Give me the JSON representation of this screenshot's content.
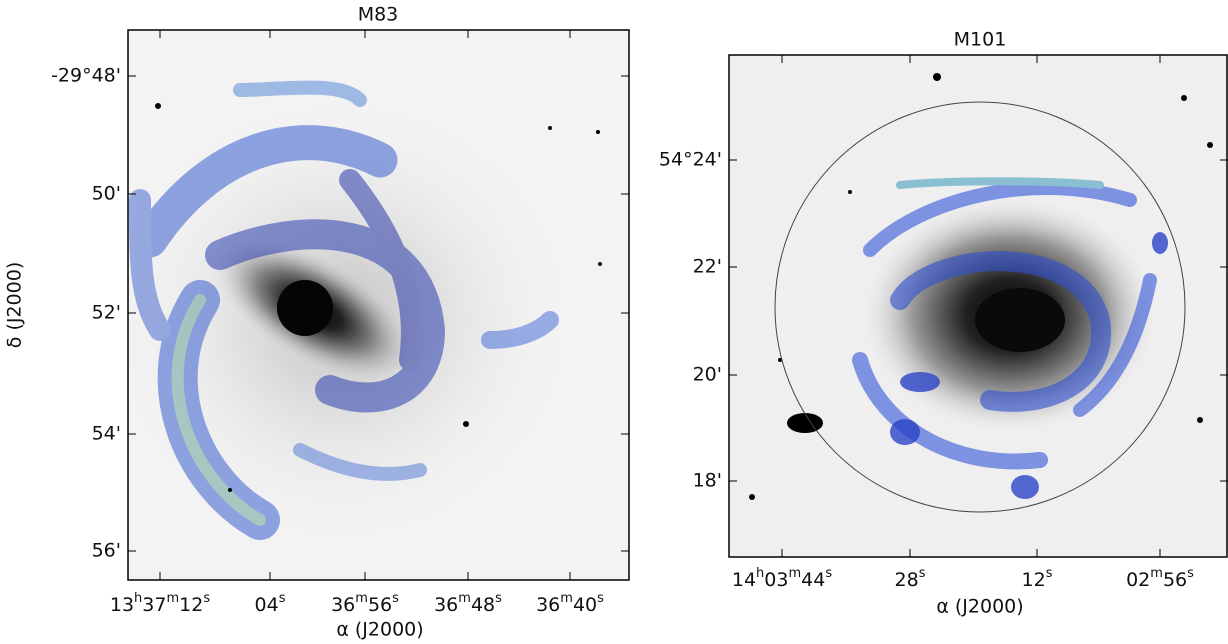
{
  "panels": [
    {
      "title": "M83",
      "y_tick_labels": [
        "-29°48'",
        "50'",
        "52'",
        "54'",
        "56'"
      ],
      "x_tick_labels": [
        [
          "13",
          "h",
          "37",
          "m",
          "12",
          "s"
        ],
        [
          "04",
          "s"
        ],
        [
          "36",
          "m",
          "56",
          "s"
        ],
        [
          "36",
          "m",
          "48",
          "s"
        ],
        [
          "36",
          "m",
          "40",
          "s"
        ]
      ],
      "x_label": "α (J2000)",
      "y_label": "δ (J2000)"
    },
    {
      "title": "M101",
      "y_tick_labels": [
        "54°24'",
        "22'",
        "20'",
        "18'"
      ],
      "x_tick_labels": [
        [
          "14",
          "h",
          "03",
          "m",
          "44",
          "s"
        ],
        [
          "28",
          "s"
        ],
        [
          "12",
          "s"
        ],
        [
          "02",
          "m",
          "56",
          "s"
        ]
      ],
      "x_label": "α (J2000)"
    }
  ]
}
